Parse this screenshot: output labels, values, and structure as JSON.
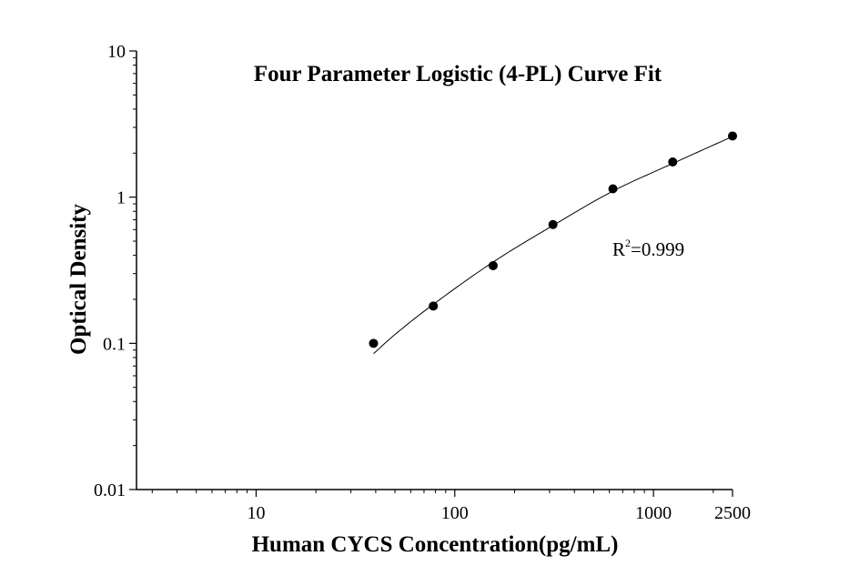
{
  "chart_data": {
    "type": "scatter",
    "title": "Four Parameter Logistic (4-PL) Curve Fit",
    "xlabel": "Human CYCS Concentration(pg/mL)",
    "ylabel": "Optical Density",
    "x_scale": "log",
    "y_scale": "log",
    "xlim": [
      2.5,
      2500
    ],
    "ylim": [
      0.01,
      10
    ],
    "x_tick_labels": [
      "10",
      "100",
      "1000",
      "2500"
    ],
    "x_tick_values": [
      10,
      100,
      1000,
      2500
    ],
    "y_tick_labels": [
      "0.01",
      "0.1",
      "1",
      "10"
    ],
    "y_tick_values": [
      0.01,
      0.1,
      1,
      10
    ],
    "grid": false,
    "legend": "none",
    "series": [
      {
        "x": [
          39,
          78,
          156,
          312,
          625,
          1250,
          2500
        ],
        "y": [
          0.1,
          0.18,
          0.34,
          0.65,
          1.14,
          1.74,
          2.62
        ],
        "marker": "filled-circle",
        "color": "#000000"
      }
    ],
    "fit_curve": {
      "model": "4-PL",
      "x_range": [
        39,
        2500
      ],
      "points_x": [
        39,
        50,
        78,
        156,
        312,
        625,
        1250,
        2500
      ],
      "points_y": [
        0.085,
        0.115,
        0.185,
        0.36,
        0.64,
        1.1,
        1.7,
        2.6
      ],
      "color": "#000000"
    },
    "annotation": {
      "label_base": "R",
      "label_sup": "2",
      "label_rest": "=0.999"
    }
  }
}
